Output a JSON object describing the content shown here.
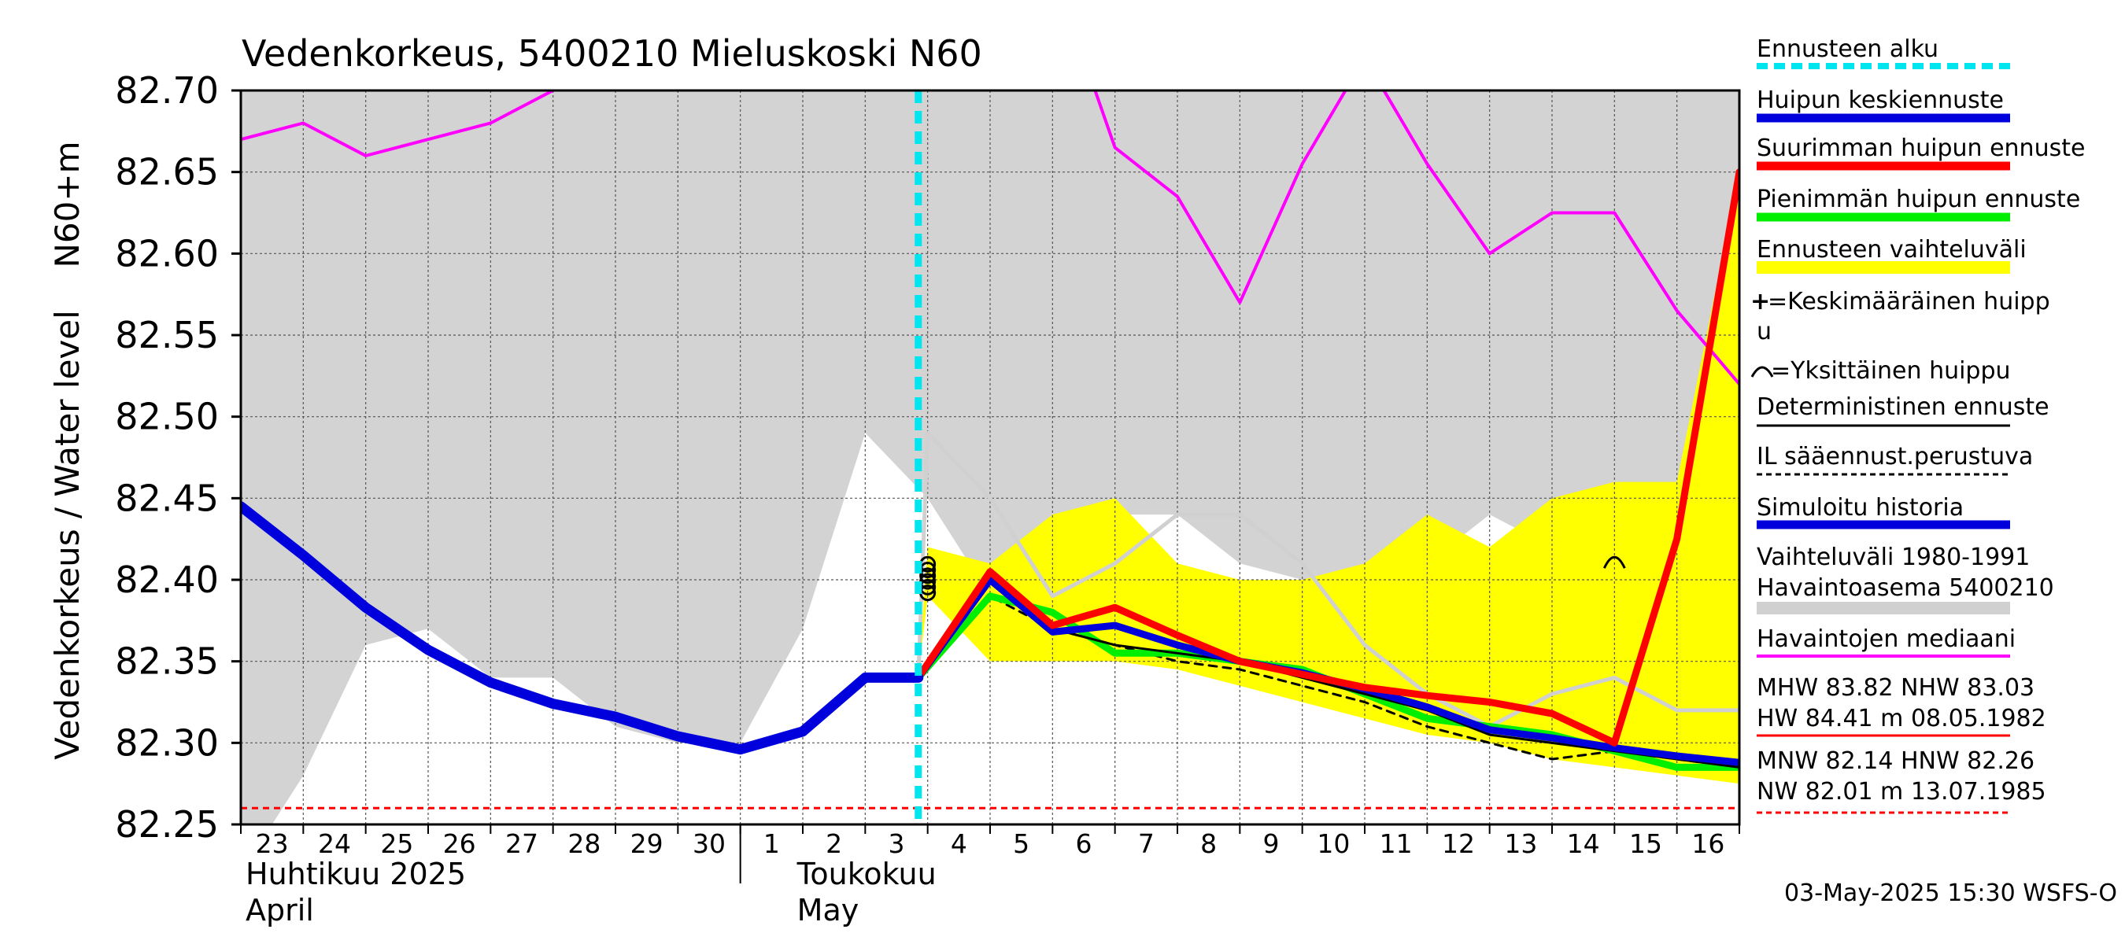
{
  "chart_data": {
    "type": "line",
    "title": "Vedenkorkeus, 5400210 Mieluskoski N60",
    "ylabel_top": "N60+m",
    "ylabel": "Vedenkorkeus / Water level",
    "ylim": [
      82.25,
      82.7
    ],
    "y_ticks": [
      "82.70",
      "82.65",
      "82.60",
      "82.55",
      "82.50",
      "82.45",
      "82.40",
      "82.35",
      "82.30",
      "82.25"
    ],
    "x_tick_labels": [
      "23",
      "24",
      "25",
      "26",
      "27",
      "28",
      "29",
      "30",
      "1",
      "2",
      "3",
      "4",
      "5",
      "6",
      "7",
      "8",
      "9",
      "10",
      "11",
      "12",
      "13",
      "14",
      "15",
      "16"
    ],
    "month_labels": [
      {
        "line1": "Huhtikuu  2025",
        "line2": "April"
      },
      {
        "line1": "Toukokuu",
        "line2": "May"
      }
    ],
    "grid": true,
    "legend_position": "right",
    "forecast_start_day": 10.85,
    "min_reference_level": 82.26,
    "history_range": {
      "x": [
        0,
        0.5,
        1,
        2,
        3,
        4,
        5,
        6,
        7,
        8,
        9,
        10,
        11,
        12,
        13,
        14,
        15,
        16,
        17,
        18,
        19,
        20,
        21,
        22,
        23,
        24
      ],
      "upper": [
        82.7,
        82.7,
        82.7,
        82.7,
        82.7,
        82.7,
        82.7,
        82.7,
        82.7,
        82.7,
        82.7,
        82.7,
        82.7,
        82.7,
        82.7,
        82.7,
        82.7,
        82.7,
        82.7,
        82.7,
        82.7,
        82.7,
        82.7,
        82.7,
        82.7,
        82.7
      ],
      "lower": [
        82.25,
        82.25,
        82.28,
        82.36,
        82.37,
        82.34,
        82.34,
        82.31,
        82.3,
        82.3,
        82.37,
        82.49,
        82.45,
        82.39,
        82.41,
        82.44,
        82.44,
        82.41,
        82.4,
        82.4,
        82.41,
        82.44,
        82.42,
        82.45,
        82.46,
        82.46
      ]
    },
    "forecast_range": {
      "x": [
        10.85,
        11,
        12,
        13,
        14,
        15,
        16,
        17,
        18,
        19,
        20,
        21,
        22,
        23,
        24
      ],
      "upper": [
        82.34,
        82.42,
        82.41,
        82.44,
        82.45,
        82.41,
        82.4,
        82.4,
        82.41,
        82.44,
        82.42,
        82.45,
        82.46,
        82.46,
        82.65
      ],
      "lower": [
        82.34,
        82.39,
        82.35,
        82.35,
        82.35,
        82.345,
        82.335,
        82.325,
        82.315,
        82.305,
        82.3,
        82.29,
        82.285,
        82.28,
        82.275
      ]
    },
    "series": [
      {
        "name": "Vaihteluväli 1980-1991 Havaintoasema 5400210",
        "color": "#d0d0d0",
        "width": 5,
        "x": [
          10.85,
          11,
          12,
          13,
          14,
          15,
          16,
          17,
          18,
          19,
          20,
          21,
          22,
          23,
          24
        ],
        "y": [
          82.34,
          82.49,
          82.45,
          82.39,
          82.41,
          82.44,
          82.44,
          82.41,
          82.36,
          82.33,
          82.31,
          82.33,
          82.34,
          82.32,
          82.32
        ]
      },
      {
        "name": "Havaintojen mediaani",
        "color": "#ff00ff",
        "width": 4,
        "x": [
          0,
          1,
          2,
          3,
          4,
          5,
          5.5,
          13.5,
          14,
          15,
          16,
          17,
          18,
          19,
          20,
          21,
          22,
          23,
          24
        ],
        "y": [
          82.67,
          82.68,
          82.66,
          82.67,
          82.68,
          82.7,
          82.72,
          82.72,
          82.665,
          82.635,
          82.57,
          82.655,
          82.72,
          82.655,
          82.6,
          82.625,
          82.625,
          82.565,
          82.52
        ]
      },
      {
        "name": "Ennusteen vaihteluväli (IL)",
        "color": "#000000",
        "width": 3,
        "dash": "10,8",
        "x": [
          10.85,
          12,
          13,
          14,
          15,
          16,
          17,
          18,
          19,
          20,
          21,
          22,
          23,
          24
        ],
        "y": [
          82.34,
          82.39,
          82.37,
          82.36,
          82.35,
          82.345,
          82.335,
          82.325,
          82.31,
          82.3,
          82.29,
          82.295,
          82.29,
          82.285
        ]
      },
      {
        "name": "Pienimmän huipun ennuste",
        "color": "#00ee00",
        "width": 9,
        "x": [
          10.85,
          12,
          13,
          14,
          15,
          16,
          17,
          18,
          19,
          20,
          21,
          22,
          23,
          24
        ],
        "y": [
          82.34,
          82.39,
          82.38,
          82.355,
          82.355,
          82.35,
          82.345,
          82.33,
          82.315,
          82.31,
          82.305,
          82.295,
          82.285,
          82.285
        ]
      },
      {
        "name": "Deterministinen ennuste",
        "color": "#000000",
        "width": 3,
        "x": [
          10.85,
          12,
          13,
          14,
          15,
          16,
          17,
          18,
          19,
          20,
          21,
          22,
          23,
          24
        ],
        "y": [
          82.34,
          82.4,
          82.37,
          82.36,
          82.355,
          82.35,
          82.34,
          82.33,
          82.32,
          82.305,
          82.3,
          82.295,
          82.29,
          82.285
        ]
      },
      {
        "name": "Huipun keskiennuste",
        "color": "#0000dd",
        "width": 9,
        "x": [
          10.85,
          12,
          13,
          14,
          15,
          16,
          17,
          18,
          19,
          20,
          21,
          22,
          23,
          24
        ],
        "y": [
          82.34,
          82.4,
          82.368,
          82.372,
          82.36,
          82.35,
          82.343,
          82.333,
          82.322,
          82.308,
          82.303,
          82.297,
          82.292,
          82.288
        ]
      },
      {
        "name": "Suurimman huipun ennuste",
        "color": "#ff0000",
        "width": 9,
        "x": [
          10.85,
          12,
          13,
          14,
          15,
          16,
          17,
          18,
          19,
          20,
          21,
          22,
          23,
          24
        ],
        "y": [
          82.34,
          82.405,
          82.372,
          82.383,
          82.366,
          82.35,
          82.342,
          82.334,
          82.329,
          82.325,
          82.318,
          82.3,
          82.425,
          82.65
        ]
      },
      {
        "name": "Simuloitu historia",
        "color": "#0000dd",
        "width": 13,
        "x": [
          0,
          1,
          2,
          3,
          4,
          5,
          6,
          7,
          8,
          9,
          10,
          10.85
        ],
        "y": [
          82.445,
          82.415,
          82.383,
          82.357,
          82.337,
          82.324,
          82.316,
          82.304,
          82.296,
          82.307,
          82.34,
          82.34
        ]
      }
    ],
    "peak_markers_day": 11,
    "single_peak_marker": {
      "x": 22,
      "y": 82.41
    }
  },
  "legend": [
    {
      "label": "Ennusteen alku",
      "color": "#00e5ee",
      "style": "dashed-thick"
    },
    {
      "label": "Huipun keskiennuste",
      "color": "#0000dd",
      "style": "thick"
    },
    {
      "label": "Suurimman huipun ennuste",
      "color": "#ff0000",
      "style": "thick"
    },
    {
      "label": "Pienimmän huipun ennuste",
      "color": "#00ee00",
      "style": "thick"
    },
    {
      "label": "Ennusteen vaihteluväli",
      "color": "#ffff00",
      "style": "band"
    },
    {
      "label": "=Keskimääräinen huipp",
      "label2": "u",
      "style": "plus-icon"
    },
    {
      "label": "=Yksittäinen huippu",
      "style": "arc-icon"
    },
    {
      "label": "Deterministinen ennuste",
      "color": "#000000",
      "style": "thin"
    },
    {
      "label": "IL sääennust.perustuva",
      "color": "#000000",
      "style": "dashed-thin"
    },
    {
      "label": "Simuloitu historia",
      "color": "#0000dd",
      "style": "thick"
    },
    {
      "label": "Vaihteluväli 1980-1991",
      "label2": " Havaintoasema 5400210",
      "color": "#d0d0d0",
      "style": "band"
    },
    {
      "label": "Havaintojen mediaani",
      "color": "#ff00ff",
      "style": "thin-mid"
    },
    {
      "label": "MHW  83.82 NHW  83.03",
      "label2": "HW  84.41 m 08.05.1982",
      "color": "#ff0000",
      "style": "thin"
    },
    {
      "label": "MNW  82.14 HNW  82.26",
      "label2": "NW  82.01 m 13.07.1985",
      "color": "#ff0000",
      "style": "dashed-thin"
    }
  ],
  "timestamp": "03-May-2025 15:30 WSFS-O"
}
